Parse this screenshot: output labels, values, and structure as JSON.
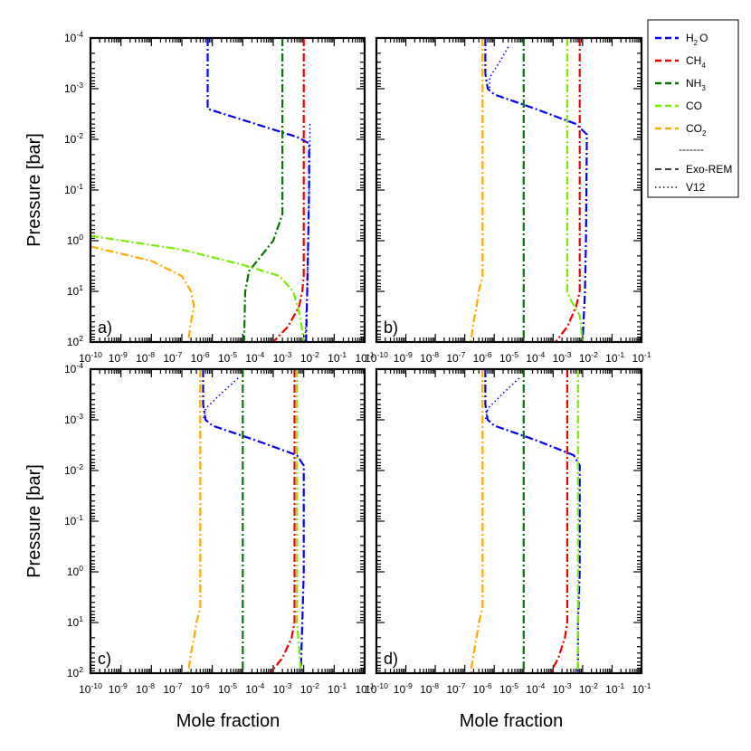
{
  "figure": {
    "ylabel": "Pressure [bar]",
    "xlabel": "Mole fraction",
    "legend": {
      "placement": "right",
      "separator": "-------",
      "style_entries": [
        {
          "label": "Exo-REM",
          "style": "dashed"
        },
        {
          "label": "V12",
          "style": "dotted"
        }
      ]
    }
  },
  "species": [
    {
      "key": "H2O",
      "base": "H",
      "sub": "2",
      "post": "O",
      "color": "#0000ee"
    },
    {
      "key": "CH4",
      "base": "CH",
      "sub": "4",
      "post": "",
      "color": "#ee0000"
    },
    {
      "key": "NH3",
      "base": "NH",
      "sub": "3",
      "post": "",
      "color": "#007700"
    },
    {
      "key": "CO",
      "base": "CO",
      "sub": "",
      "post": "",
      "color": "#77ee00"
    },
    {
      "key": "CO2",
      "base": "CO",
      "sub": "2",
      "post": "",
      "color": "#ffaa00"
    }
  ],
  "chart_data": [
    {
      "type": "line",
      "panel_label": "a)",
      "xscale": "log",
      "yscale": "log",
      "xlim": [
        1e-10,
        0.1
      ],
      "ylim": [
        100,
        0.0001
      ],
      "y_inverted": true,
      "xlabel": "",
      "ylabel": "Pressure [bar]",
      "x_tick_labels": [
        "10-10",
        "10-9",
        "10-8",
        "10-7",
        "10-6",
        "10-5",
        "10-4",
        "10-3",
        "10-2",
        "10-1"
      ],
      "y_tick_labels": [
        "10-4",
        "10-3",
        "10-2",
        "10-1",
        "100",
        "101",
        "102"
      ],
      "series": [
        {
          "species": "H2O",
          "model": "Exo-REM",
          "x": [
            7e-07,
            7e-07,
            7e-07,
            0.0006,
            0.0015,
            0.0015,
            0.0014,
            0.0013,
            0.0012
          ],
          "y": [
            0.0001,
            0.001,
            0.0025,
            0.009,
            0.012,
            0.1,
            1,
            10,
            100
          ]
        },
        {
          "species": "H2O",
          "model": "V12",
          "x": [
            0.0016,
            0.0016,
            0.0015,
            0.0014,
            0.0013,
            0.0011
          ],
          "y": [
            0.005,
            0.01,
            0.1,
            1,
            10,
            100
          ]
        },
        {
          "species": "CH4",
          "model": "Exo-REM",
          "x": [
            0.001,
            0.001,
            0.001,
            0.0009,
            0.0007,
            0.0003,
            0.0001
          ],
          "y": [
            0.0001,
            1,
            5,
            10,
            20,
            50,
            100
          ]
        },
        {
          "species": "NH3",
          "model": "Exo-REM",
          "x": [
            0.0002,
            0.0002,
            0.0002,
            0.0001,
            4e-05,
            1.6e-05,
            1.2e-05,
            1.1e-05
          ],
          "y": [
            0.0001,
            0.1,
            0.3,
            1,
            2,
            4,
            10,
            100
          ]
        },
        {
          "species": "CO",
          "model": "Exo-REM",
          "x": [
            1e-10,
            1e-07,
            1e-05,
            0.00016,
            0.00045,
            0.00075,
            0.001
          ],
          "y": [
            0.8,
            1.5,
            3,
            5,
            10,
            30,
            100
          ]
        },
        {
          "species": "CO2",
          "model": "Exo-REM",
          "x": [
            1e-10,
            1e-08,
            1e-07,
            2e-07,
            2.5e-07,
            2e-07,
            1.6e-07
          ],
          "y": [
            1.3,
            2.5,
            5,
            10,
            20,
            40,
            100
          ]
        }
      ]
    },
    {
      "type": "line",
      "panel_label": "b)",
      "xscale": "log",
      "yscale": "log",
      "xlim": [
        1e-10,
        0.1
      ],
      "ylim": [
        100,
        0.0001
      ],
      "y_inverted": true,
      "xlabel": "",
      "ylabel": "",
      "x_tick_labels": [
        "10-10",
        "10-9",
        "10-8",
        "10-7",
        "10-6",
        "10-5",
        "10-4",
        "10-3",
        "10-2",
        "10-1"
      ],
      "y_tick_labels": [],
      "series": [
        {
          "species": "H2O",
          "model": "Exo-REM",
          "x": [
            5e-07,
            5e-07,
            6e-07,
            1e-06,
            2.5e-05,
            0.0006,
            0.0014,
            0.0013,
            0.0012,
            0.001
          ],
          "y": [
            0.0001,
            0.0005,
            0.001,
            0.0013,
            0.0025,
            0.005,
            0.008,
            1,
            10,
            100
          ]
        },
        {
          "species": "H2O",
          "model": "V12",
          "x": [
            3e-06,
            1.5e-06,
            7e-07,
            7e-07
          ],
          "y": [
            0.00015,
            0.0003,
            0.0006,
            0.001
          ]
        },
        {
          "species": "CH4",
          "model": "Exo-REM",
          "x": [
            0.0008,
            0.0008,
            0.0008,
            0.0006,
            0.0003,
            0.00012
          ],
          "y": [
            0.0001,
            1,
            10,
            20,
            50,
            100
          ]
        },
        {
          "species": "NH3",
          "model": "Exo-REM",
          "x": [
            1e-05,
            1e-05,
            1e-05
          ],
          "y": [
            0.0001,
            10,
            100
          ]
        },
        {
          "species": "CO",
          "model": "Exo-REM",
          "x": [
            0.0003,
            0.0003,
            0.0003,
            0.0004,
            0.0008,
            0.001
          ],
          "y": [
            0.0001,
            1,
            10,
            15,
            30,
            100
          ]
        },
        {
          "species": "CO2",
          "model": "Exo-REM",
          "x": [
            4e-07,
            4e-07,
            4e-07,
            3e-07,
            2.5e-07,
            2e-07,
            1.6e-07
          ],
          "y": [
            0.0001,
            1,
            5,
            10,
            20,
            40,
            100
          ]
        }
      ]
    },
    {
      "type": "line",
      "panel_label": "c)",
      "xscale": "log",
      "yscale": "log",
      "xlim": [
        1e-10,
        0.1
      ],
      "ylim": [
        100,
        0.0001
      ],
      "y_inverted": true,
      "xlabel": "Mole fraction",
      "ylabel": "Pressure [bar]",
      "x_tick_labels": [
        "10-10",
        "10-9",
        "10-8",
        "10-7",
        "10-6",
        "10-5",
        "10-4",
        "10-3",
        "10-2",
        "10-1"
      ],
      "y_tick_labels": [
        "10-4",
        "10-3",
        "10-2",
        "10-1",
        "100",
        "101",
        "102"
      ],
      "series": [
        {
          "species": "H2O",
          "model": "Exo-REM",
          "x": [
            5e-07,
            5e-07,
            6e-07,
            1e-06,
            2.5e-05,
            0.0006,
            0.001,
            0.001,
            0.0009,
            0.0008
          ],
          "y": [
            0.0001,
            0.0005,
            0.001,
            0.0013,
            0.0025,
            0.005,
            0.008,
            1,
            10,
            100
          ]
        },
        {
          "species": "H2O",
          "model": "V12",
          "x": [
            7e-06,
            2e-06,
            6e-07,
            5e-07
          ],
          "y": [
            0.00015,
            0.0003,
            0.0006,
            0.001
          ]
        },
        {
          "species": "CH4",
          "model": "Exo-REM",
          "x": [
            0.0005,
            0.0005,
            0.0005,
            0.0004,
            0.0002,
            8e-05
          ],
          "y": [
            0.0001,
            1,
            10,
            20,
            50,
            100
          ]
        },
        {
          "species": "NH3",
          "model": "Exo-REM",
          "x": [
            1e-05,
            1e-05,
            1e-05
          ],
          "y": [
            0.0001,
            10,
            100
          ]
        },
        {
          "species": "CO",
          "model": "Exo-REM",
          "x": [
            0.0006,
            0.0006,
            0.0006,
            0.0007,
            0.0008
          ],
          "y": [
            0.0001,
            1,
            10,
            30,
            100
          ]
        },
        {
          "species": "CO2",
          "model": "Exo-REM",
          "x": [
            4e-07,
            4e-07,
            4e-07,
            3e-07,
            2.5e-07,
            2e-07,
            1.6e-07
          ],
          "y": [
            0.0001,
            1,
            5,
            10,
            20,
            40,
            100
          ]
        }
      ]
    },
    {
      "type": "line",
      "panel_label": "d)",
      "xscale": "log",
      "yscale": "log",
      "xlim": [
        1e-10,
        0.1
      ],
      "ylim": [
        100,
        0.0001
      ],
      "y_inverted": true,
      "xlabel": "Mole fraction",
      "ylabel": "",
      "x_tick_labels": [
        "10-10",
        "10-9",
        "10-8",
        "10-7",
        "10-6",
        "10-5",
        "10-4",
        "10-3",
        "10-2",
        "10-1"
      ],
      "y_tick_labels": [],
      "series": [
        {
          "species": "H2O",
          "model": "Exo-REM",
          "x": [
            5e-07,
            5e-07,
            6e-07,
            1e-06,
            2.5e-05,
            0.0005,
            0.0008,
            0.0008,
            0.0007,
            0.0007
          ],
          "y": [
            0.0001,
            0.0005,
            0.001,
            0.0013,
            0.0025,
            0.005,
            0.008,
            1,
            10,
            100
          ]
        },
        {
          "species": "H2O",
          "model": "V12",
          "x": [
            7e-06,
            2e-06,
            6e-07,
            5e-07
          ],
          "y": [
            0.00015,
            0.0003,
            0.0006,
            0.001
          ]
        },
        {
          "species": "CH4",
          "model": "Exo-REM",
          "x": [
            0.0003,
            0.0003,
            0.0003,
            0.00025,
            0.00015,
            8e-05
          ],
          "y": [
            0.0001,
            1,
            10,
            20,
            50,
            100
          ]
        },
        {
          "species": "NH3",
          "model": "Exo-REM",
          "x": [
            1e-05,
            1e-05,
            1e-05
          ],
          "y": [
            0.0001,
            10,
            100
          ]
        },
        {
          "species": "CO",
          "model": "Exo-REM",
          "x": [
            0.0007,
            0.0007,
            0.0007
          ],
          "y": [
            0.0001,
            10,
            100
          ]
        },
        {
          "species": "CO2",
          "model": "Exo-REM",
          "x": [
            4e-07,
            4e-07,
            4e-07,
            3e-07,
            2.5e-07,
            2e-07,
            1.6e-07
          ],
          "y": [
            0.0001,
            1,
            5,
            10,
            20,
            40,
            100
          ]
        }
      ]
    }
  ]
}
